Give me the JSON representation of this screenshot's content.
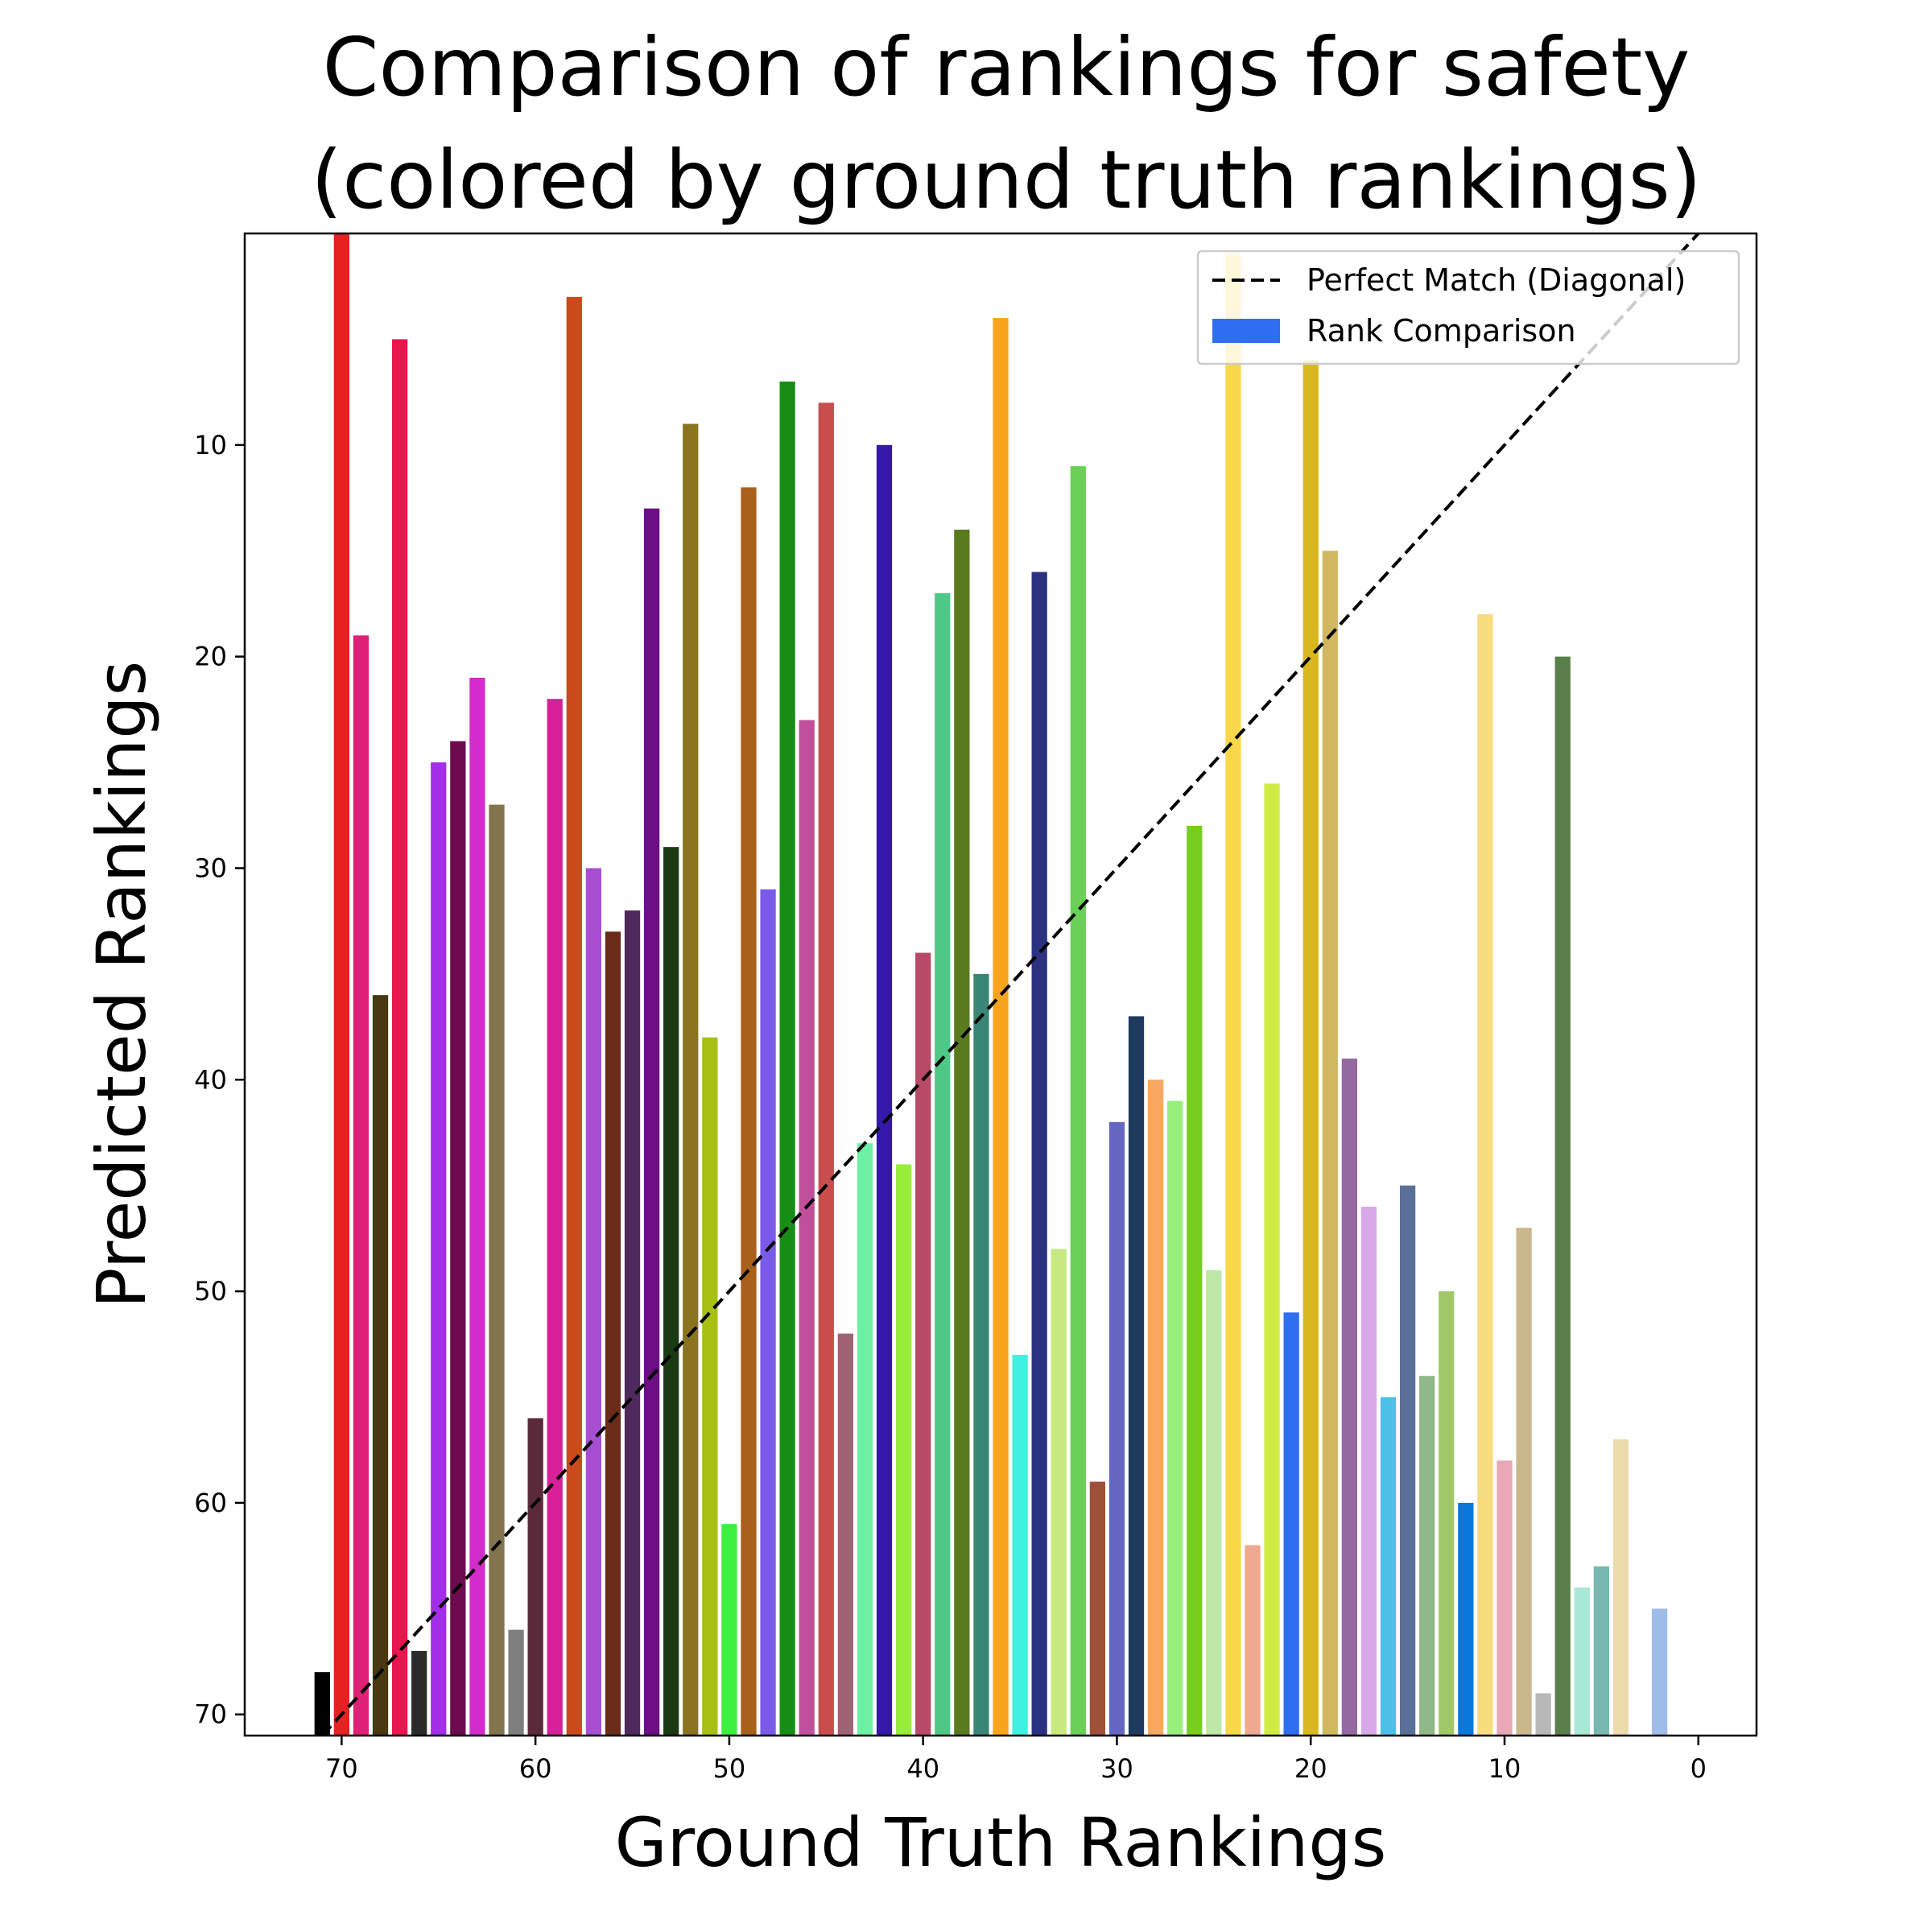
{
  "chart_data": {
    "type": "bar",
    "title_lines": [
      "Comparison of rankings for safety",
      "(colored by ground truth rankings)"
    ],
    "xlabel": "Ground Truth Rankings",
    "ylabel": "Predicted Rankings",
    "xlim": [
      75,
      -3
    ],
    "ylim": [
      71,
      0
    ],
    "x_ticks": [
      70,
      60,
      50,
      40,
      30,
      20,
      10,
      0
    ],
    "y_ticks": [
      10,
      20,
      30,
      40,
      50,
      60,
      70
    ],
    "bar_baseline": 71,
    "grid": false,
    "legend": {
      "placement": "top-right",
      "entries": [
        {
          "label": "Perfect Match (Diagonal)",
          "kind": "dashed-line",
          "color": "#000000"
        },
        {
          "label": "Rank Comparison",
          "kind": "patch",
          "color": "#2f6ef0"
        }
      ]
    },
    "diagonal": {
      "from": [
        71,
        71
      ],
      "to": [
        -3,
        -3
      ],
      "color": "#000000",
      "style": "dashed"
    },
    "bars": [
      {
        "x": 71,
        "y": 68,
        "color": "#000000"
      },
      {
        "x": 70,
        "y": 0,
        "color": "#e52222"
      },
      {
        "x": 69,
        "y": 19,
        "color": "#de2076"
      },
      {
        "x": 68,
        "y": 36,
        "color": "#4a3810"
      },
      {
        "x": 67,
        "y": 5,
        "color": "#e8164e"
      },
      {
        "x": 66,
        "y": 67,
        "color": "#2b2b2b"
      },
      {
        "x": 65,
        "y": 25,
        "color": "#a22ee8"
      },
      {
        "x": 64,
        "y": 24,
        "color": "#6e0a4e"
      },
      {
        "x": 63,
        "y": 21,
        "color": "#d42ccc"
      },
      {
        "x": 62,
        "y": 27,
        "color": "#82744c"
      },
      {
        "x": 61,
        "y": 66,
        "color": "#7e7e7e"
      },
      {
        "x": 60,
        "y": 56,
        "color": "#5a2a3a"
      },
      {
        "x": 59,
        "y": 22,
        "color": "#d8209a"
      },
      {
        "x": 58,
        "y": 3,
        "color": "#cc4a1c"
      },
      {
        "x": 57,
        "y": 30,
        "color": "#a84ed2"
      },
      {
        "x": 56,
        "y": 33,
        "color": "#6a2c18"
      },
      {
        "x": 55,
        "y": 32,
        "color": "#4e2a5c"
      },
      {
        "x": 54,
        "y": 13,
        "color": "#6c0e84"
      },
      {
        "x": 53,
        "y": 29,
        "color": "#1a3a14"
      },
      {
        "x": 52,
        "y": 9,
        "color": "#8a741e"
      },
      {
        "x": 51,
        "y": 38,
        "color": "#a6c014"
      },
      {
        "x": 50,
        "y": 61,
        "color": "#3ef03e"
      },
      {
        "x": 49,
        "y": 12,
        "color": "#a8601a"
      },
      {
        "x": 48,
        "y": 31,
        "color": "#7a5ae8"
      },
      {
        "x": 47,
        "y": 7,
        "color": "#168e16"
      },
      {
        "x": 46,
        "y": 23,
        "color": "#c0509c"
      },
      {
        "x": 45,
        "y": 8,
        "color": "#c84e4e"
      },
      {
        "x": 44,
        "y": 52,
        "color": "#9e6474"
      },
      {
        "x": 43,
        "y": 43,
        "color": "#6ef0a4"
      },
      {
        "x": 42,
        "y": 10,
        "color": "#3418a8"
      },
      {
        "x": 41,
        "y": 44,
        "color": "#98ec3c"
      },
      {
        "x": 40,
        "y": 34,
        "color": "#b84a68"
      },
      {
        "x": 39,
        "y": 17,
        "color": "#4ec886"
      },
      {
        "x": 38,
        "y": 14,
        "color": "#5a7a1e"
      },
      {
        "x": 37,
        "y": 35,
        "color": "#3a8676"
      },
      {
        "x": 36,
        "y": 4,
        "color": "#f8a41c"
      },
      {
        "x": 35,
        "y": 53,
        "color": "#40f0e0"
      },
      {
        "x": 34,
        "y": 16,
        "color": "#2c3282"
      },
      {
        "x": 33,
        "y": 48,
        "color": "#c8e880"
      },
      {
        "x": 32,
        "y": 11,
        "color": "#6ad058"
      },
      {
        "x": 31,
        "y": 59,
        "color": "#9e5038"
      },
      {
        "x": 30,
        "y": 42,
        "color": "#6466c0"
      },
      {
        "x": 29,
        "y": 37,
        "color": "#1e3a5e"
      },
      {
        "x": 28,
        "y": 40,
        "color": "#f8a860"
      },
      {
        "x": 27,
        "y": 41,
        "color": "#98f07c"
      },
      {
        "x": 26,
        "y": 28,
        "color": "#78ce1c"
      },
      {
        "x": 25,
        "y": 49,
        "color": "#bce8a8"
      },
      {
        "x": 24,
        "y": 1,
        "color": "#f8d848"
      },
      {
        "x": 23,
        "y": 62,
        "color": "#f0a890"
      },
      {
        "x": 22,
        "y": 26,
        "color": "#d0ec44"
      },
      {
        "x": 21,
        "y": 51,
        "color": "#2e6ef0"
      },
      {
        "x": 20,
        "y": 6,
        "color": "#d8b81c"
      },
      {
        "x": 19,
        "y": 15,
        "color": "#d0b860"
      },
      {
        "x": 18,
        "y": 39,
        "color": "#9468a0"
      },
      {
        "x": 17,
        "y": 46,
        "color": "#d8a8e8"
      },
      {
        "x": 16,
        "y": 55,
        "color": "#4ec0e8"
      },
      {
        "x": 15,
        "y": 45,
        "color": "#5a7098"
      },
      {
        "x": 14,
        "y": 54,
        "color": "#90b888"
      },
      {
        "x": 13,
        "y": 50,
        "color": "#a0c868"
      },
      {
        "x": 12,
        "y": 60,
        "color": "#0a78d8"
      },
      {
        "x": 11,
        "y": 18,
        "color": "#f8dc80"
      },
      {
        "x": 10,
        "y": 58,
        "color": "#e8a8b8"
      },
      {
        "x": 9,
        "y": 47,
        "color": "#c8b88c"
      },
      {
        "x": 8,
        "y": 69,
        "color": "#b8b8b8"
      },
      {
        "x": 7,
        "y": 20,
        "color": "#5a7e4c"
      },
      {
        "x": 6,
        "y": 64,
        "color": "#a8e8d4"
      },
      {
        "x": 5,
        "y": 63,
        "color": "#78b8b0"
      },
      {
        "x": 4,
        "y": 57,
        "color": "#ecdcac"
      },
      {
        "x": 2,
        "y": 65,
        "color": "#a0bce8"
      }
    ]
  }
}
